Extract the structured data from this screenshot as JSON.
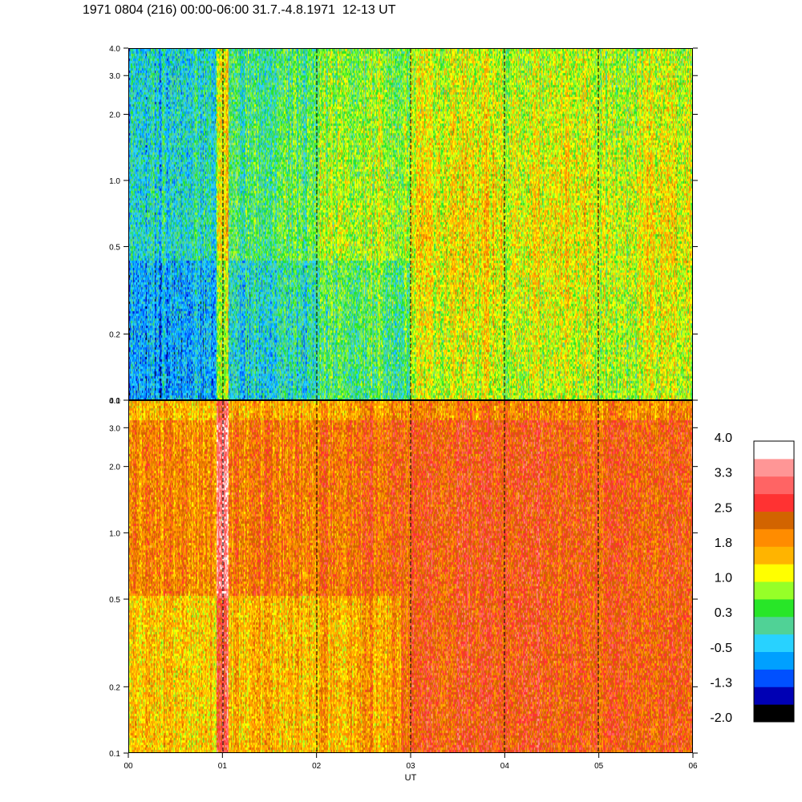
{
  "title": "1971 0804 (216) 00:00-06:00 31.7.-4.8.1971  12-13 UT",
  "chart_data": [
    {
      "type": "heatmap",
      "panel": "top",
      "x": {
        "label": "",
        "ticks": [
          "00",
          "01",
          "02",
          "03",
          "04",
          "05",
          "06"
        ],
        "range": [
          0,
          6
        ]
      },
      "y": {
        "scale": "log",
        "range": [
          0.1,
          4.0
        ],
        "ticks": [
          {
            "value": 0.1,
            "label": "0.1"
          },
          {
            "value": 0.2,
            "label": "0.2"
          },
          {
            "value": 0.5,
            "label": "0.5"
          },
          {
            "value": 1.0,
            "label": "1.0"
          },
          {
            "value": 2.0,
            "label": "2.0"
          },
          {
            "value": 3.0,
            "label": "3.0"
          },
          {
            "value": 4.0,
            "label": "4.0"
          }
        ]
      },
      "hour_markers": [
        1,
        2,
        3,
        4,
        5
      ],
      "activity_by_hour": [
        0.15,
        0.2,
        0.35,
        0.4,
        0.55,
        0.6,
        0.75,
        0.8,
        0.7,
        0.75,
        0.65,
        0.75
      ],
      "base_level": -0.6
    },
    {
      "type": "heatmap",
      "panel": "bottom",
      "x": {
        "label": "UT",
        "ticks": [
          "00",
          "01",
          "02",
          "03",
          "04",
          "05",
          "06"
        ],
        "range": [
          0,
          6
        ]
      },
      "y": {
        "scale": "log",
        "range": [
          0.1,
          4.0
        ],
        "ticks": [
          {
            "value": 0.1,
            "label": "0.1"
          },
          {
            "value": 0.2,
            "label": "0.2"
          },
          {
            "value": 0.5,
            "label": "0.5"
          },
          {
            "value": 1.0,
            "label": "1.0"
          },
          {
            "value": 2.0,
            "label": "2.0"
          },
          {
            "value": 3.0,
            "label": "3.0"
          },
          {
            "value": 4.0,
            "label": "4.0"
          }
        ]
      },
      "hour_markers": [
        1,
        2,
        3,
        4,
        5
      ],
      "activity_by_hour": [
        0.55,
        0.55,
        0.6,
        0.6,
        0.65,
        0.75,
        0.85,
        0.95,
        0.9,
        0.8,
        0.85,
        0.85
      ],
      "base_level": 1.3
    }
  ],
  "colorbar": {
    "labels": [
      "4.0",
      "3.3",
      "2.5",
      "1.8",
      "1.0",
      "0.3",
      "-0.5",
      "-1.3",
      "-2.0"
    ],
    "range": [
      -2.0,
      4.0
    ],
    "colors": [
      "#000000",
      "#0000b4",
      "#0050ff",
      "#00a0ff",
      "#28d2ff",
      "#50d296",
      "#28e628",
      "#96ff28",
      "#ffff00",
      "#ffb400",
      "#ff8c00",
      "#d26400",
      "#ff3232",
      "#ff6464",
      "#ff9696",
      "#ffffff"
    ]
  }
}
